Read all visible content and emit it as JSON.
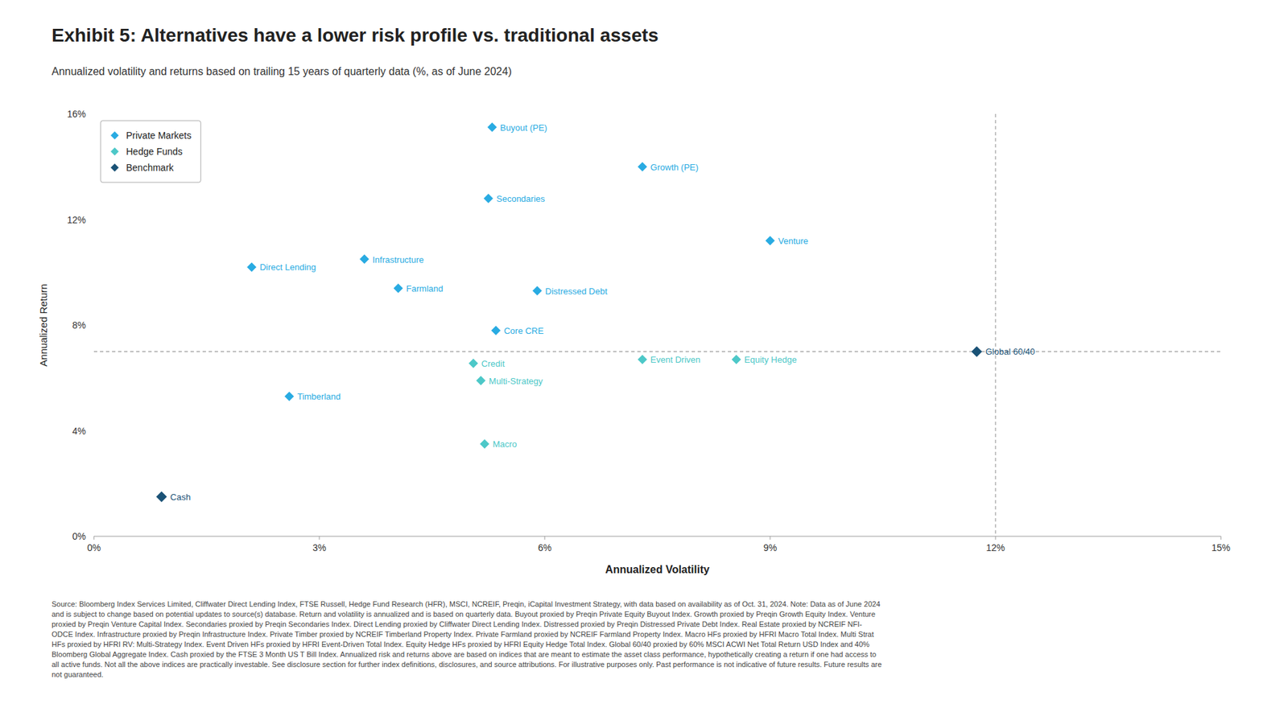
{
  "chart_data": {
    "type": "scatter",
    "title": "Exhibit 5: Alternatives have a lower risk profile vs. traditional assets",
    "subtitle": "Annualized volatility and returns based on trailing 15 years of quarterly data (%, as of June 2024)",
    "x_label": "Annualized Volatility",
    "y_label": "Annualized Return",
    "xlim": [
      0,
      15
    ],
    "ylim": [
      0,
      16
    ],
    "xticks": [
      {
        "value": 0,
        "label": "0%"
      },
      {
        "value": 3,
        "label": "3%"
      },
      {
        "value": 6,
        "label": "6%"
      },
      {
        "value": 9,
        "label": "9%"
      },
      {
        "value": 12,
        "label": "12%"
      },
      {
        "value": 15,
        "label": "15%"
      }
    ],
    "yticks": [
      {
        "value": 0,
        "label": "0%"
      },
      {
        "value": 4,
        "label": "4%"
      },
      {
        "value": 8,
        "label": "8%"
      },
      {
        "value": 12,
        "label": "12%"
      },
      {
        "value": 16,
        "label": "16%"
      }
    ],
    "grid": false,
    "legend": "upper left",
    "marker": "diamond",
    "ref_line_x": 12.0,
    "ref_line_y": 7.0,
    "series": [
      {
        "name": "Private Markets",
        "color": "#29abe2",
        "x": [
          5.3,
          7.3,
          5.25,
          9.0,
          2.1,
          3.6,
          4.05,
          5.9,
          5.35,
          2.6
        ],
        "values": [
          15.5,
          14.0,
          12.8,
          11.2,
          10.2,
          10.5,
          9.4,
          9.3,
          7.8,
          5.3
        ],
        "labels": [
          "Buyout (PE)",
          "Growth (PE)",
          "Secondaries",
          "Venture",
          "Direct Lending",
          "Infrastructure",
          "Farmland",
          "Distressed Debt",
          "Core CRE",
          "Timberland"
        ]
      },
      {
        "name": "Hedge Funds",
        "color": "#4dc8c8",
        "x": [
          5.05,
          5.15,
          7.3,
          8.55,
          5.2
        ],
        "values": [
          6.55,
          5.9,
          6.7,
          6.7,
          3.5
        ],
        "labels": [
          "Credit",
          "Multi-Strategy",
          "Event Driven",
          "Equity Hedge",
          "Macro"
        ]
      },
      {
        "name": "Benchmark",
        "color": "#1a5276",
        "x": [
          0.9,
          11.75
        ],
        "values": [
          1.5,
          7.0
        ],
        "labels": [
          "Cash",
          "Global 60/40"
        ]
      }
    ],
    "footnote": [
      "Source: Bloomberg Index Services Limited, Cliffwater Direct Lending Index, FTSE Russell, Hedge Fund Research (HFR), MSCI, NCREIF, Preqin, iCapital Investment Strategy, with data based on availability as of Oct. 31, 2024. Note: Data as of June 2024",
      "and is subject to change based on potential updates to source(s) database. Return and volatility is annualized and is based on quarterly data. Buyout proxied by Preqin Private Equity Buyout Index. Growth proxied by Preqin Growth Equity Index. Venture",
      "proxied by Preqin Venture Capital Index. Secondaries proxied by Preqin Secondaries Index. Direct Lending proxied by Cliffwater Direct Lending Index. Distressed proxied by Preqin Distressed Private Debt Index. Real Estate proxied by NCREIF NFI-",
      "ODCE Index. Infrastructure proxied by Preqin Infrastructure Index. Private Timber proxied by NCREIF Timberland Property Index. Private Farmland proxied by NCREIF Farmland Property Index. Macro HFs proxied by HFRI Macro Total Index. Multi Strat",
      "HFs proxied by HFRI RV: Multi-Strategy Index. Event Driven HFs proxied by HFRI Event-Driven Total Index. Equity Hedge HFs proxied by HFRI Equity Hedge Total Index. Global 60/40 proxied by 60% MSCI ACWI Net Total Return USD Index and 40%",
      "Bloomberg Global Aggregate Index. Cash proxied by the FTSE 3 Month US T Bill Index. Annualized risk and returns above are based on indices that are meant to estimate the asset class performance, hypothetically creating a return if one had access to",
      "all active funds. Not all the above indices are practically investable. See disclosure section for further index definitions, disclosures, and source attributions. For illustrative purposes only. Past performance is not indicative of future results. Future results are",
      "not guaranteed."
    ]
  }
}
